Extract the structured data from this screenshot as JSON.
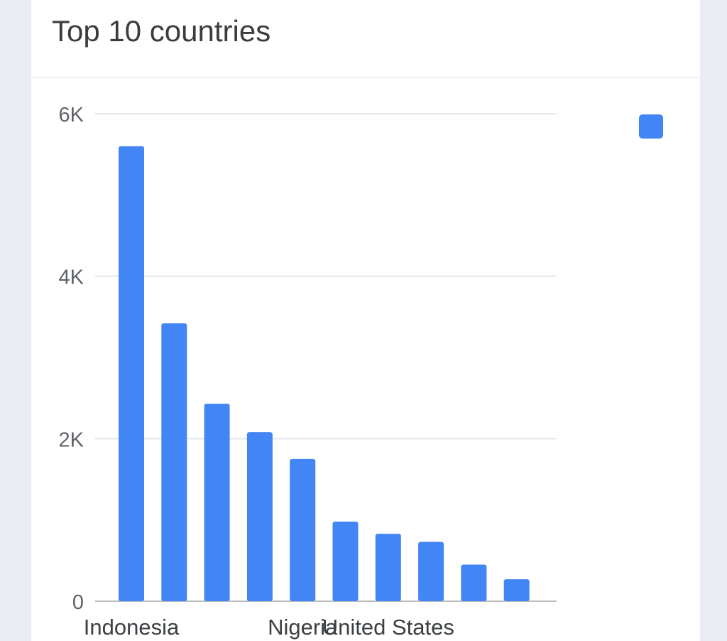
{
  "card": {
    "title": "Top 10 countries"
  },
  "chart_data": {
    "type": "bar",
    "title": "Top 10 countries",
    "categories": [
      "Indonesia",
      "",
      "",
      "",
      "Nigeria",
      "",
      "United States",
      "",
      "",
      ""
    ],
    "series": [
      {
        "values": [
          5600,
          3420,
          2430,
          2080,
          1750,
          980,
          830,
          730,
          450,
          270
        ],
        "color": "#4285f4"
      }
    ],
    "y_ticks": [
      {
        "value": 0,
        "label": "0"
      },
      {
        "value": 2000,
        "label": "2K"
      },
      {
        "value": 4000,
        "label": "4K"
      },
      {
        "value": 6000,
        "label": "6K"
      }
    ],
    "ylim": [
      0,
      6000
    ],
    "grid": true,
    "legend_position": "top-right",
    "colors": {
      "bar": "#4285f4",
      "grid": "#e3e6ea",
      "baseline": "#bdbdbd",
      "tick_text": "#5f6368",
      "label_text": "#3c4043"
    }
  }
}
